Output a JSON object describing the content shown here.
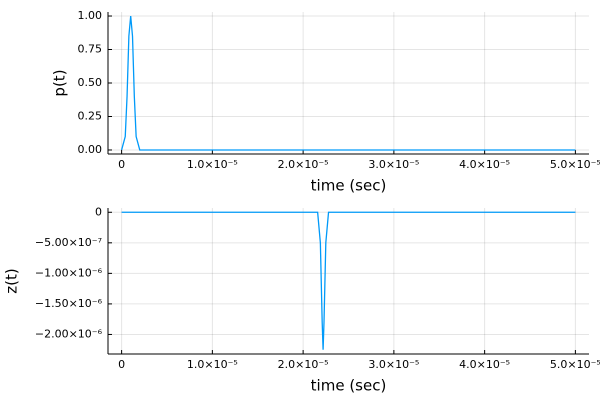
{
  "chart_data": [
    {
      "type": "line",
      "y_label": "p(t)",
      "x_label": "time (sec)",
      "x": [
        0,
        4e-07,
        6e-07,
        8e-07,
        1e-06,
        1.2e-06,
        1.4e-06,
        1.6e-06,
        2e-06,
        5e-05
      ],
      "series": [
        {
          "color": "#009af9",
          "values": [
            0,
            0.1,
            0.4,
            0.85,
            1.0,
            0.85,
            0.4,
            0.1,
            0,
            0
          ]
        }
      ],
      "xlim": [
        -1.5e-06,
        5.15e-05
      ],
      "xticks": [
        0,
        {
          "value": 1e-05,
          "label": "1.0×10⁻⁵"
        },
        {
          "value": 2e-05,
          "label": "2.0×10⁻⁵"
        },
        {
          "value": 3e-05,
          "label": "3.0×10⁻⁵"
        },
        {
          "value": 4e-05,
          "label": "4.0×10⁻⁵"
        },
        {
          "value": 5e-05,
          "label": "5.0×10⁻⁵"
        }
      ],
      "ylim": [
        -0.03,
        1.03
      ],
      "yticks": [
        {
          "value": 0,
          "label": "0.00"
        },
        0.25,
        {
          "value": 0.5,
          "label": "0.50"
        },
        0.75,
        {
          "value": 1,
          "label": "1.00"
        }
      ],
      "grid": true
    },
    {
      "type": "line",
      "y_label": "z(t)",
      "x_label": "time (sec)",
      "x": [
        0,
        2.16e-05,
        2.19e-05,
        2.21e-05,
        2.22e-05,
        2.23e-05,
        2.25e-05,
        2.28e-05,
        5e-05
      ],
      "series": [
        {
          "color": "#009af9",
          "values": [
            0,
            0,
            -5e-07,
            -1.8e-06,
            -2.25e-06,
            -1.8e-06,
            -5e-07,
            0,
            0
          ]
        }
      ],
      "xlim": [
        -1.5e-06,
        5.15e-05
      ],
      "xticks": [
        0,
        {
          "value": 1e-05,
          "label": "1.0×10⁻⁵"
        },
        {
          "value": 2e-05,
          "label": "2.0×10⁻⁵"
        },
        {
          "value": 3e-05,
          "label": "3.0×10⁻⁵"
        },
        {
          "value": 4e-05,
          "label": "4.0×10⁻⁵"
        },
        {
          "value": 5e-05,
          "label": "5.0×10⁻⁵"
        }
      ],
      "ylim": [
        -2.32e-06,
        7e-08
      ],
      "yticks": [
        0,
        {
          "value": -5e-07,
          "label": "−5.00×10⁻⁷"
        },
        {
          "value": -1e-06,
          "label": "−1.00×10⁻⁶"
        },
        {
          "value": -1.5e-06,
          "label": "−1.50×10⁻⁶"
        },
        {
          "value": -2e-06,
          "label": "−2.00×10⁻⁶"
        }
      ],
      "grid": true
    }
  ]
}
